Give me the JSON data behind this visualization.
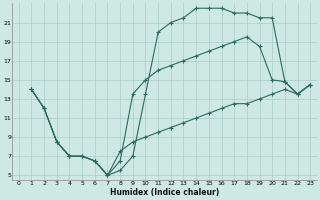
{
  "xlabel": "Humidex (Indice chaleur)",
  "bg_color": "#cee8e3",
  "line_color": "#2a6b5e",
  "grid_color": "#a8ccc8",
  "xlim": [
    -0.5,
    23.5
  ],
  "ylim": [
    4.5,
    23.0
  ],
  "xticks": [
    0,
    1,
    2,
    3,
    4,
    5,
    6,
    7,
    8,
    9,
    10,
    11,
    12,
    13,
    14,
    15,
    16,
    17,
    18,
    19,
    20,
    21,
    22,
    23
  ],
  "yticks": [
    5,
    7,
    9,
    11,
    13,
    15,
    17,
    19,
    21
  ],
  "line1_x": [
    1,
    2,
    3,
    4,
    5,
    6,
    7,
    8,
    9,
    10,
    11,
    12,
    13,
    14,
    15,
    16,
    17,
    18,
    19,
    20,
    21,
    22,
    23
  ],
  "line1_y": [
    14,
    12,
    8.5,
    7,
    7,
    6.5,
    5,
    5.5,
    7,
    13.5,
    20,
    21,
    21.5,
    22.5,
    22.5,
    22.5,
    22.0,
    22.0,
    21.5,
    21.5,
    14.8,
    13.5,
    14.5
  ],
  "line2_x": [
    1,
    2,
    3,
    4,
    5,
    6,
    7,
    8,
    9,
    10,
    11,
    12,
    13,
    14,
    15,
    16,
    17,
    18,
    19,
    20,
    21,
    22,
    23
  ],
  "line2_y": [
    14,
    12,
    8.5,
    7,
    7,
    6.5,
    5,
    6.5,
    13.5,
    15.0,
    16.0,
    16.5,
    17.0,
    17.5,
    18.0,
    18.5,
    19.0,
    19.5,
    18.5,
    15.0,
    14.8,
    13.5,
    14.5
  ],
  "line3_x": [
    1,
    2,
    3,
    4,
    5,
    6,
    7,
    8,
    9,
    10,
    11,
    12,
    13,
    14,
    15,
    16,
    17,
    18,
    19,
    20,
    21,
    22,
    23
  ],
  "line3_y": [
    14,
    12,
    8.5,
    7,
    7,
    6.5,
    5,
    7.5,
    8.5,
    9.0,
    9.5,
    10.0,
    10.5,
    11.0,
    11.5,
    12.0,
    12.5,
    12.5,
    13.0,
    13.5,
    14.0,
    13.5,
    14.5
  ]
}
